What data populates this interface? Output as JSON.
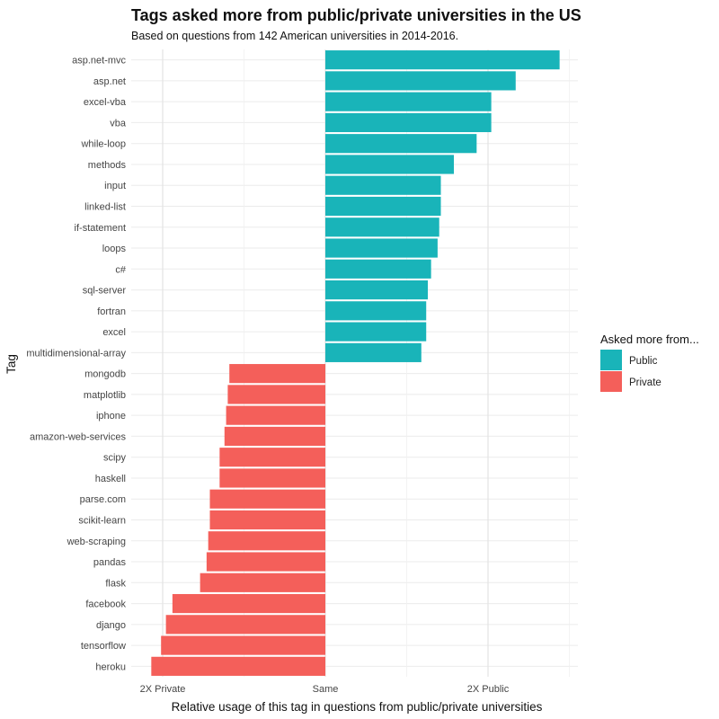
{
  "chart_data": {
    "type": "bar",
    "orientation": "horizontal",
    "title": "Tags asked more from public/private universities in the US",
    "subtitle": "Based on questions from 142 American universities in 2014-2016.",
    "xlabel": "Relative usage of this tag in questions from public/private universities",
    "ylabel": "Tag",
    "x_scale": "log2 ratio (public / private)",
    "xlim": [
      -1.2,
      1.55
    ],
    "x_ticks": [
      {
        "value": -1,
        "label": "2X Private"
      },
      {
        "value": 0,
        "label": "Same"
      },
      {
        "value": 1,
        "label": "2X Public"
      }
    ],
    "grid": true,
    "legend": {
      "title": "Asked more from...",
      "position": "right",
      "entries": [
        {
          "label": "Public",
          "color": "#19b4b9"
        },
        {
          "label": "Private",
          "color": "#f45f5a"
        }
      ]
    },
    "categories": [
      "asp.net-mvc",
      "asp.net",
      "excel-vba",
      "vba",
      "while-loop",
      "methods",
      "input",
      "linked-list",
      "if-statement",
      "loops",
      "c#",
      "sql-server",
      "fortran",
      "excel",
      "multidimensional-array",
      "mongodb",
      "matplotlib",
      "iphone",
      "amazon-web-services",
      "scipy",
      "haskell",
      "parse.com",
      "scikit-learn",
      "web-scraping",
      "pandas",
      "flask",
      "facebook",
      "django",
      "tensorflow",
      "heroku"
    ],
    "values": [
      1.44,
      1.17,
      1.02,
      1.02,
      0.93,
      0.79,
      0.71,
      0.71,
      0.7,
      0.69,
      0.65,
      0.63,
      0.62,
      0.62,
      0.59,
      -0.59,
      -0.6,
      -0.61,
      -0.62,
      -0.65,
      -0.65,
      -0.71,
      -0.71,
      -0.72,
      -0.73,
      -0.77,
      -0.94,
      -0.98,
      -1.01,
      -1.07
    ],
    "groups": [
      "Public",
      "Public",
      "Public",
      "Public",
      "Public",
      "Public",
      "Public",
      "Public",
      "Public",
      "Public",
      "Public",
      "Public",
      "Public",
      "Public",
      "Public",
      "Private",
      "Private",
      "Private",
      "Private",
      "Private",
      "Private",
      "Private",
      "Private",
      "Private",
      "Private",
      "Private",
      "Private",
      "Private",
      "Private",
      "Private"
    ]
  }
}
